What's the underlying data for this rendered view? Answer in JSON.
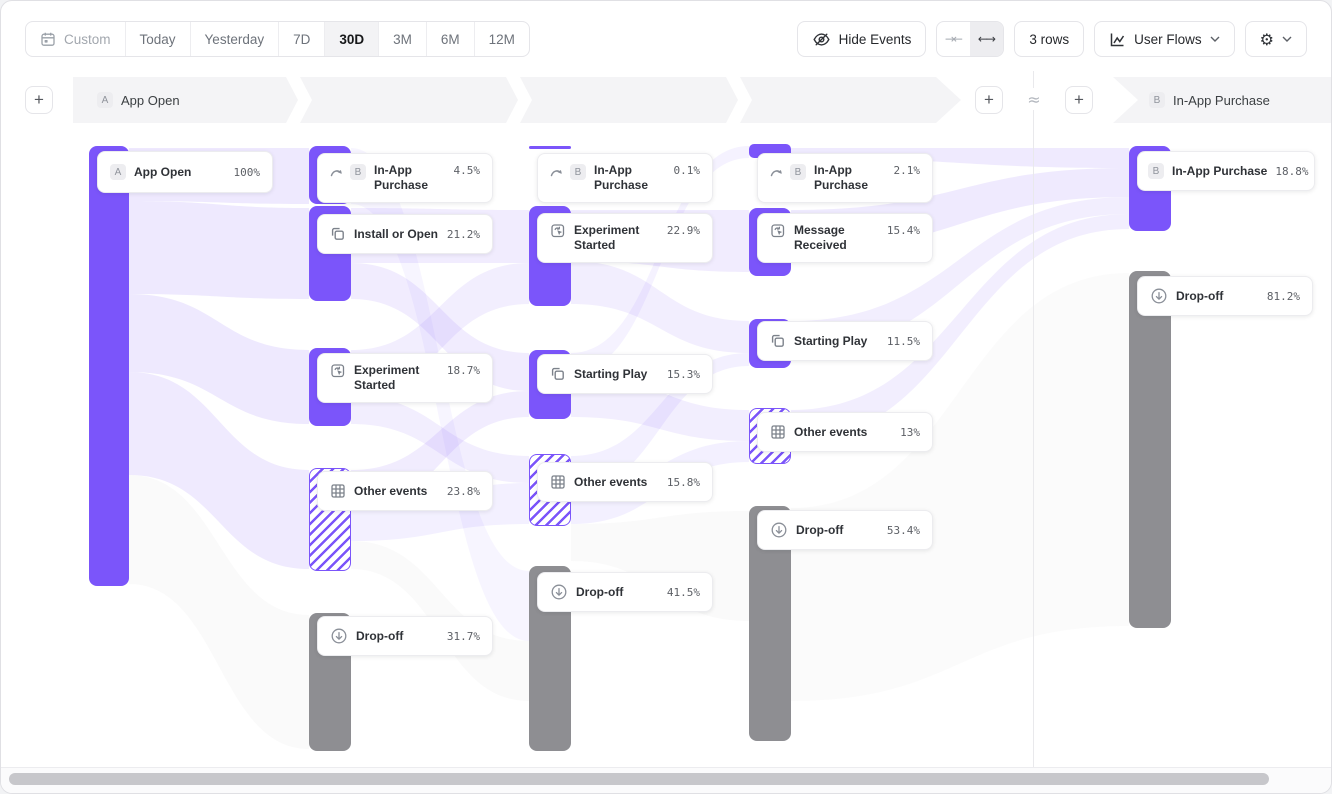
{
  "colors": {
    "accent": "#7B55FA",
    "dropoff_gray": "#8E8E92",
    "ribbon_purple": "#7B55FA",
    "band_gray": "#F4F4F6",
    "border": "#E5E5E9"
  },
  "toolbar": {
    "date_ranges": [
      "Custom",
      "Today",
      "Yesterday",
      "7D",
      "30D",
      "3M",
      "6M",
      "12M"
    ],
    "active_range": "30D",
    "hide_events_label": "Hide Events",
    "collapse_icon": "→←",
    "expand_icon": "←→",
    "rows_label": "3 rows",
    "view_label": "User Flows",
    "settings_icon": "⚙"
  },
  "flow_header": {
    "add_step": "+",
    "start": {
      "badge": "A",
      "label": "App Open"
    },
    "end": {
      "badge": "B",
      "label": "In-App Purchase"
    },
    "connector": "≈"
  },
  "columns": [
    {
      "nodes": [
        {
          "badge": "A",
          "label": "App Open",
          "value": "100%"
        }
      ]
    },
    {
      "nodes": [
        {
          "icon": "skip-ahead-icon",
          "badge": "B",
          "label": "In-App Purchase",
          "value": "4.5%"
        },
        {
          "icon": "copy-icon",
          "label": "Install or Open",
          "value": "21.2%"
        },
        {
          "icon": "experiment-icon",
          "label": "Experiment Started",
          "value": "18.7%"
        },
        {
          "icon": "grid-icon",
          "label": "Other events",
          "value": "23.8%"
        },
        {
          "icon": "drop-off-icon",
          "label": "Drop-off",
          "value": "31.7%"
        }
      ]
    },
    {
      "nodes": [
        {
          "icon": "skip-ahead-icon",
          "badge": "B",
          "label": "In-App Purchase",
          "value": "0.1%"
        },
        {
          "icon": "experiment-icon",
          "label": "Experiment Started",
          "value": "22.9%"
        },
        {
          "icon": "copy-icon",
          "label": "Starting Play",
          "value": "15.3%"
        },
        {
          "icon": "grid-icon",
          "label": "Other events",
          "value": "15.8%"
        },
        {
          "icon": "drop-off-icon",
          "label": "Drop-off",
          "value": "41.5%"
        }
      ]
    },
    {
      "nodes": [
        {
          "icon": "skip-ahead-icon",
          "badge": "B",
          "label": "In-App Purchase",
          "value": "2.1%"
        },
        {
          "icon": "experiment-icon",
          "label": "Message Received",
          "value": "15.4%"
        },
        {
          "icon": "copy-icon",
          "label": "Starting Play",
          "value": "11.5%"
        },
        {
          "icon": "grid-icon",
          "label": "Other events",
          "value": "13%"
        },
        {
          "icon": "drop-off-icon",
          "label": "Drop-off",
          "value": "53.4%"
        }
      ]
    },
    {
      "nodes": [
        {
          "badge": "B",
          "label": "In-App Purchase",
          "value": "18.8%"
        },
        {
          "icon": "drop-off-icon",
          "label": "Drop-off",
          "value": "81.2%"
        }
      ]
    }
  ],
  "ribbons": [
    [
      128,
      147,
      200,
      308,
      147,
      203,
      "purple",
      0.13
    ],
    [
      128,
      200,
      293,
      308,
      207,
      298,
      "purple",
      0.13
    ],
    [
      128,
      293,
      371,
      308,
      349,
      423,
      "purple",
      0.13
    ],
    [
      128,
      371,
      474,
      308,
      469,
      568,
      "purple",
      0.12
    ],
    [
      128,
      474,
      583,
      308,
      614,
      748,
      "gray",
      0.045
    ],
    [
      350,
      207,
      262,
      528,
      209,
      262,
      "purple",
      0.11
    ],
    [
      350,
      262,
      298,
      528,
      352,
      390,
      "purple",
      0.11
    ],
    [
      350,
      349,
      395,
      528,
      262,
      303,
      "purple",
      0.1
    ],
    [
      350,
      395,
      423,
      528,
      455,
      482,
      "purple",
      0.1
    ],
    [
      350,
      469,
      510,
      528,
      390,
      416,
      "purple",
      0.11
    ],
    [
      350,
      510,
      540,
      528,
      482,
      523,
      "purple",
      0.09
    ],
    [
      350,
      147,
      203,
      528,
      570,
      640,
      "purple",
      0.06
    ],
    [
      350,
      540,
      568,
      528,
      640,
      700,
      "gray",
      0.045
    ],
    [
      570,
      209,
      260,
      748,
      209,
      271,
      "purple",
      0.11
    ],
    [
      570,
      260,
      303,
      748,
      320,
      352,
      "purple",
      0.1
    ],
    [
      570,
      352,
      372,
      748,
      145,
      157,
      "purple",
      0.08
    ],
    [
      570,
      372,
      416,
      748,
      409,
      440,
      "purple",
      0.1
    ],
    [
      570,
      455,
      490,
      748,
      352,
      365,
      "purple",
      0.09
    ],
    [
      570,
      490,
      523,
      748,
      440,
      461,
      "purple",
      0.09
    ],
    [
      570,
      523,
      560,
      748,
      510,
      620,
      "gray",
      0.045
    ],
    [
      790,
      147,
      157,
      1128,
      147,
      167,
      "purple",
      0.12
    ],
    [
      790,
      209,
      250,
      1128,
      167,
      196,
      "purple",
      0.12
    ],
    [
      790,
      320,
      352,
      1128,
      196,
      213,
      "purple",
      0.1
    ],
    [
      790,
      409,
      440,
      1128,
      213,
      228,
      "purple",
      0.1
    ],
    [
      790,
      507,
      700,
      1128,
      272,
      625,
      "gray",
      0.035
    ]
  ],
  "chart_data": {
    "type": "sankey-user-flow",
    "title": "User Flows",
    "start_event": {
      "badge": "A",
      "label": "App Open",
      "pct": 100
    },
    "end_event": {
      "badge": "B",
      "label": "In-App Purchase",
      "pct": 18.8
    },
    "steps": [
      {
        "step": 1,
        "nodes": [
          {
            "label": "App Open",
            "pct": 100
          }
        ]
      },
      {
        "step": 2,
        "nodes": [
          {
            "label": "In-App Purchase",
            "pct": 4.5
          },
          {
            "label": "Install or Open",
            "pct": 21.2
          },
          {
            "label": "Experiment Started",
            "pct": 18.7
          },
          {
            "label": "Other events",
            "pct": 23.8
          },
          {
            "label": "Drop-off",
            "pct": 31.7
          }
        ]
      },
      {
        "step": 3,
        "nodes": [
          {
            "label": "In-App Purchase",
            "pct": 0.1
          },
          {
            "label": "Experiment Started",
            "pct": 22.9
          },
          {
            "label": "Starting Play",
            "pct": 15.3
          },
          {
            "label": "Other events",
            "pct": 15.8
          },
          {
            "label": "Drop-off",
            "pct": 41.5
          }
        ]
      },
      {
        "step": 4,
        "nodes": [
          {
            "label": "In-App Purchase",
            "pct": 2.1
          },
          {
            "label": "Message Received",
            "pct": 15.4
          },
          {
            "label": "Starting Play",
            "pct": 11.5
          },
          {
            "label": "Other events",
            "pct": 13
          },
          {
            "label": "Drop-off",
            "pct": 53.4
          }
        ]
      },
      {
        "step": 5,
        "nodes": [
          {
            "label": "In-App Purchase",
            "pct": 18.8
          },
          {
            "label": "Drop-off",
            "pct": 81.2
          }
        ]
      }
    ]
  }
}
